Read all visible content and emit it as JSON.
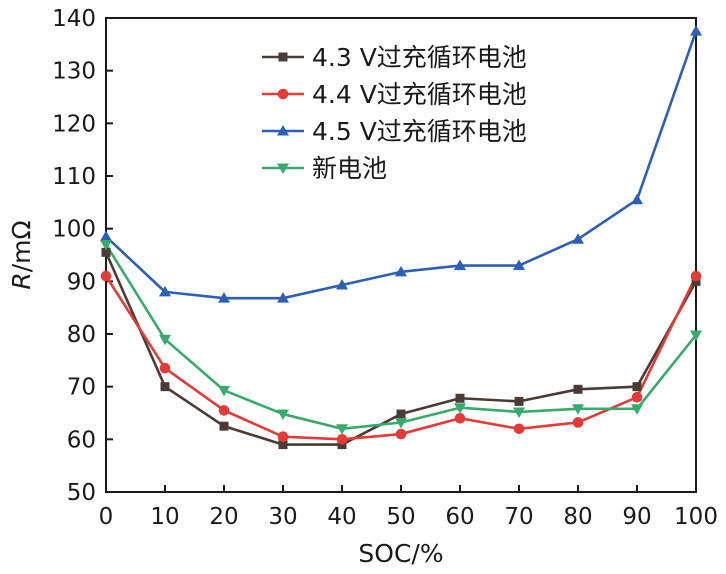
{
  "chart_data": {
    "type": "line",
    "title": "",
    "xlabel": "SOC/%",
    "ylabel_italic": "R",
    "ylabel_rest": "/mΩ",
    "xlim": [
      0,
      100
    ],
    "ylim": [
      50,
      140
    ],
    "x": [
      0,
      10,
      20,
      30,
      40,
      50,
      60,
      70,
      80,
      90,
      100
    ],
    "xticks": [
      "0",
      "10",
      "20",
      "30",
      "40",
      "50",
      "60",
      "70",
      "80",
      "90",
      "100"
    ],
    "yticks": [
      "50",
      "60",
      "70",
      "80",
      "90",
      "100",
      "110",
      "120",
      "130",
      "140"
    ],
    "legend_position": "top-center",
    "series": [
      {
        "name": "4.3 V过充循环电池",
        "color": "#4a3b36",
        "marker": "square",
        "values": [
          95.5,
          70,
          62.5,
          59,
          59,
          64.8,
          67.8,
          67.2,
          69.5,
          70,
          90
        ]
      },
      {
        "name": "4.4 V过充循环电池",
        "color": "#e23b38",
        "marker": "circle",
        "values": [
          91,
          73.5,
          65.5,
          60.5,
          60,
          61,
          64,
          62,
          63.2,
          68,
          91
        ]
      },
      {
        "name": "4.5 V过充循环电池",
        "color": "#2f5fb3",
        "marker": "triangle-up",
        "values": [
          98.5,
          88,
          86.8,
          86.8,
          89.3,
          91.8,
          93,
          93,
          98,
          105.5,
          137.5
        ]
      },
      {
        "name": "新电池",
        "color": "#3aaa6c",
        "marker": "triangle-down",
        "values": [
          97,
          79,
          69.3,
          64.8,
          62,
          63.2,
          66,
          65.2,
          65.8,
          65.8,
          79.8
        ]
      }
    ]
  }
}
